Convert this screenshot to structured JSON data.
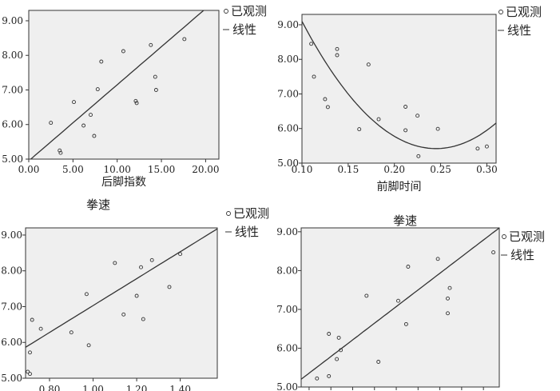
{
  "chart_data": [
    {
      "type": "scatter",
      "title": "",
      "xlabel": "后脚指数",
      "ylabel": "",
      "xlim": [
        0,
        21.5
      ],
      "ylim": [
        5.0,
        9.3
      ],
      "xticks": [
        "0.00",
        "5.00",
        "10.00",
        "15.00",
        "20.00"
      ],
      "yticks": [
        "5.00",
        "6.00",
        "7.00",
        "8.00",
        "9.00"
      ],
      "legend": {
        "observed": "已观测",
        "fit": "线性"
      },
      "points": [
        [
          2.5,
          6.05
        ],
        [
          3.5,
          5.25
        ],
        [
          3.6,
          5.18
        ],
        [
          5.1,
          6.65
        ],
        [
          6.2,
          5.97
        ],
        [
          7.0,
          6.28
        ],
        [
          7.4,
          5.67
        ],
        [
          7.8,
          7.02
        ],
        [
          8.2,
          7.82
        ],
        [
          10.7,
          8.12
        ],
        [
          12.1,
          6.68
        ],
        [
          12.2,
          6.62
        ],
        [
          13.8,
          8.3
        ],
        [
          14.3,
          7.38
        ],
        [
          14.4,
          7.0
        ],
        [
          17.6,
          8.47
        ]
      ],
      "fit_line": {
        "intercept": 4.95,
        "slope": 0.22
      }
    },
    {
      "type": "scatter",
      "title": "",
      "xlabel": "前脚时间",
      "ylabel": "",
      "xlim": [
        0.1,
        0.31
      ],
      "ylim": [
        5.0,
        9.3
      ],
      "xticks": [
        "0.10",
        "0.15",
        "0.20",
        "0.25",
        "0.30"
      ],
      "yticks": [
        "5.00",
        "6.00",
        "7.00",
        "8.00",
        "9.00"
      ],
      "legend": {
        "observed": "已观测",
        "fit": "线性"
      },
      "points": [
        [
          0.11,
          8.45
        ],
        [
          0.113,
          7.5
        ],
        [
          0.125,
          6.85
        ],
        [
          0.128,
          6.62
        ],
        [
          0.138,
          8.3
        ],
        [
          0.138,
          8.12
        ],
        [
          0.162,
          5.98
        ],
        [
          0.172,
          7.85
        ],
        [
          0.183,
          6.27
        ],
        [
          0.212,
          6.63
        ],
        [
          0.212,
          5.95
        ],
        [
          0.225,
          6.37
        ],
        [
          0.226,
          5.2
        ],
        [
          0.247,
          5.99
        ],
        [
          0.29,
          5.42
        ],
        [
          0.3,
          5.48
        ]
      ],
      "fit_curve": {
        "type": "quadratic",
        "vertex_x": 0.245,
        "vertex_y": 5.42,
        "a": 175
      }
    },
    {
      "type": "scatter",
      "title": "拳速",
      "xlabel": "",
      "ylabel": "",
      "xlim": [
        0.69,
        1.57
      ],
      "ylim": [
        5.0,
        9.2
      ],
      "xticks": [
        "0.80",
        "1.00",
        "1.20",
        "1.40"
      ],
      "yticks": [
        "5.00",
        "6.00",
        "7.00",
        "8.00",
        "9.00"
      ],
      "legend": {
        "observed": "已观测",
        "fit": "线性"
      },
      "points": [
        [
          0.7,
          5.18
        ],
        [
          0.71,
          5.12
        ],
        [
          0.71,
          5.72
        ],
        [
          0.72,
          6.63
        ],
        [
          0.76,
          6.38
        ],
        [
          0.9,
          6.28
        ],
        [
          0.97,
          7.35
        ],
        [
          0.98,
          5.92
        ],
        [
          1.1,
          8.22
        ],
        [
          1.14,
          6.78
        ],
        [
          1.2,
          7.3
        ],
        [
          1.22,
          8.1
        ],
        [
          1.23,
          6.65
        ],
        [
          1.27,
          8.3
        ],
        [
          1.35,
          7.55
        ],
        [
          1.4,
          8.47
        ]
      ],
      "fit_line": {
        "intercept": 3.27,
        "slope": 3.76
      }
    },
    {
      "type": "scatter",
      "title": "拳速",
      "xlabel": "",
      "ylabel": "",
      "xlim": [
        0.0,
        1.0
      ],
      "ylim": [
        5.0,
        9.1
      ],
      "xticks": [],
      "yticks": [
        "5.00",
        "6.00",
        "7.00",
        "8.00",
        "9.00"
      ],
      "legend": {
        "observed": "已观测",
        "fit": "线性"
      },
      "points": [
        [
          0.08,
          5.22
        ],
        [
          0.14,
          5.28
        ],
        [
          0.14,
          6.37
        ],
        [
          0.18,
          5.72
        ],
        [
          0.19,
          6.27
        ],
        [
          0.2,
          5.95
        ],
        [
          0.33,
          7.35
        ],
        [
          0.39,
          5.65
        ],
        [
          0.49,
          7.22
        ],
        [
          0.53,
          6.62
        ],
        [
          0.54,
          8.1
        ],
        [
          0.69,
          8.3
        ],
        [
          0.74,
          7.28
        ],
        [
          0.74,
          6.9
        ],
        [
          0.75,
          7.55
        ],
        [
          0.97,
          8.47
        ]
      ],
      "fit_line": {
        "intercept": 5.2,
        "slope": 3.9
      }
    }
  ]
}
